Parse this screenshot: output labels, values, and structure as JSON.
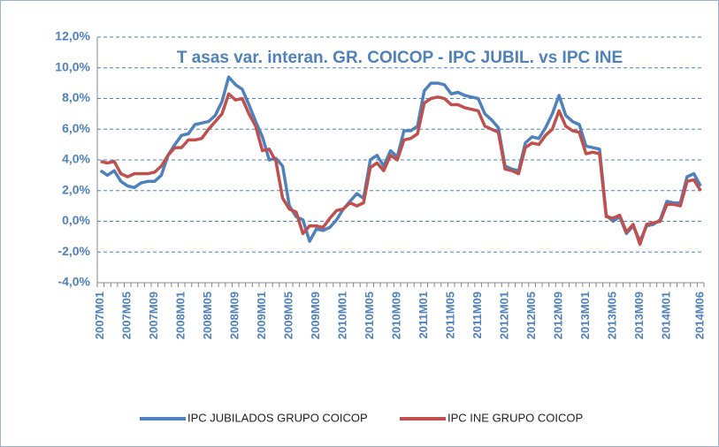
{
  "chart_data": {
    "type": "line",
    "title": "T asas var. interan. GR. COICOP - IPC JUBIL. vs IPC INE",
    "categories": [
      "2007M01",
      null,
      null,
      null,
      "2007M05",
      null,
      null,
      null,
      "2007M09",
      null,
      null,
      null,
      "2008M01",
      null,
      null,
      null,
      "2008M05",
      null,
      null,
      null,
      "2008M09",
      null,
      null,
      null,
      "2009M01",
      null,
      null,
      null,
      "2009M05",
      null,
      null,
      null,
      "2009M09",
      null,
      null,
      null,
      "2010M01",
      null,
      null,
      null,
      "2010M05",
      null,
      null,
      null,
      "2010M09",
      null,
      null,
      null,
      "2011M01",
      null,
      null,
      null,
      "2011M05",
      null,
      null,
      null,
      "2011M09",
      null,
      null,
      null,
      "2012M01",
      null,
      null,
      null,
      "2012M05",
      null,
      null,
      null,
      "2012M09",
      null,
      null,
      null,
      "2013M01",
      null,
      null,
      null,
      "2013M05",
      null,
      null,
      null,
      "2013M09",
      null,
      null,
      null,
      "2014M01",
      null,
      null,
      null,
      null,
      "2014M06"
    ],
    "series": [
      {
        "name": "IPC JUBILADOS GRUPO COICOP",
        "color": "#4f81bd",
        "values": [
          3.3,
          3.0,
          3.3,
          2.6,
          2.3,
          2.2,
          2.5,
          2.6,
          2.6,
          3.0,
          4.3,
          5.0,
          5.6,
          5.7,
          6.3,
          6.4,
          6.5,
          6.9,
          7.8,
          9.4,
          8.9,
          8.6,
          7.6,
          6.5,
          5.5,
          4.0,
          4.1,
          3.6,
          1.0,
          0.3,
          0.1,
          -1.3,
          -0.5,
          -0.6,
          -0.4,
          0.1,
          0.8,
          1.3,
          1.8,
          1.5,
          4.0,
          4.3,
          3.6,
          4.6,
          4.2,
          5.9,
          5.9,
          6.2,
          8.5,
          9.0,
          9.0,
          8.9,
          8.3,
          8.4,
          8.2,
          8.1,
          8.0,
          7.0,
          6.6,
          6.1,
          3.6,
          3.4,
          3.3,
          5.1,
          5.5,
          5.4,
          6.1,
          7.0,
          8.2,
          6.9,
          6.5,
          6.3,
          4.9,
          4.8,
          4.7,
          0.4,
          0.0,
          0.3,
          -0.8,
          -0.3,
          -1.3,
          -0.3,
          -0.2,
          0.1,
          1.3,
          1.2,
          1.2,
          2.9,
          3.1,
          2.3
        ]
      },
      {
        "name": "IPC INE GRUPO COICOP",
        "color": "#c0504d",
        "values": [
          3.9,
          3.8,
          3.9,
          3.1,
          2.9,
          3.1,
          3.1,
          3.1,
          3.2,
          3.6,
          4.3,
          4.8,
          4.8,
          5.3,
          5.3,
          5.4,
          6.0,
          6.5,
          7.0,
          8.3,
          7.9,
          8.0,
          7.0,
          6.2,
          4.6,
          4.7,
          3.9,
          1.5,
          0.8,
          0.6,
          -0.8,
          -0.3,
          -0.3,
          -0.4,
          0.2,
          0.7,
          0.8,
          1.2,
          1.0,
          1.2,
          3.5,
          3.8,
          3.3,
          4.3,
          4.0,
          5.3,
          5.4,
          5.7,
          7.7,
          8.0,
          8.1,
          8.0,
          7.6,
          7.6,
          7.4,
          7.3,
          7.2,
          6.2,
          6.0,
          5.8,
          3.4,
          3.3,
          3.1,
          4.8,
          5.1,
          5.0,
          5.6,
          6.0,
          7.2,
          6.2,
          5.9,
          5.8,
          4.4,
          4.5,
          4.4,
          0.3,
          0.2,
          0.4,
          -0.7,
          -0.2,
          -1.5,
          -0.2,
          -0.1,
          0.0,
          1.1,
          1.1,
          1.0,
          2.6,
          2.7,
          2.0
        ]
      }
    ],
    "ylim": [
      -4,
      12
    ],
    "yticks": [
      {
        "value": -4,
        "label": "-4,0%"
      },
      {
        "value": -2,
        "label": "-2,0%"
      },
      {
        "value": 0,
        "label": "0,0%"
      },
      {
        "value": 2,
        "label": "2,0%"
      },
      {
        "value": 4,
        "label": "4,0%"
      },
      {
        "value": 6,
        "label": "6,0%"
      },
      {
        "value": 8,
        "label": "8,0%"
      },
      {
        "value": 10,
        "label": "10,0%"
      },
      {
        "value": 12,
        "label": "12,0%"
      }
    ],
    "grid": true,
    "legend": "bottom"
  }
}
